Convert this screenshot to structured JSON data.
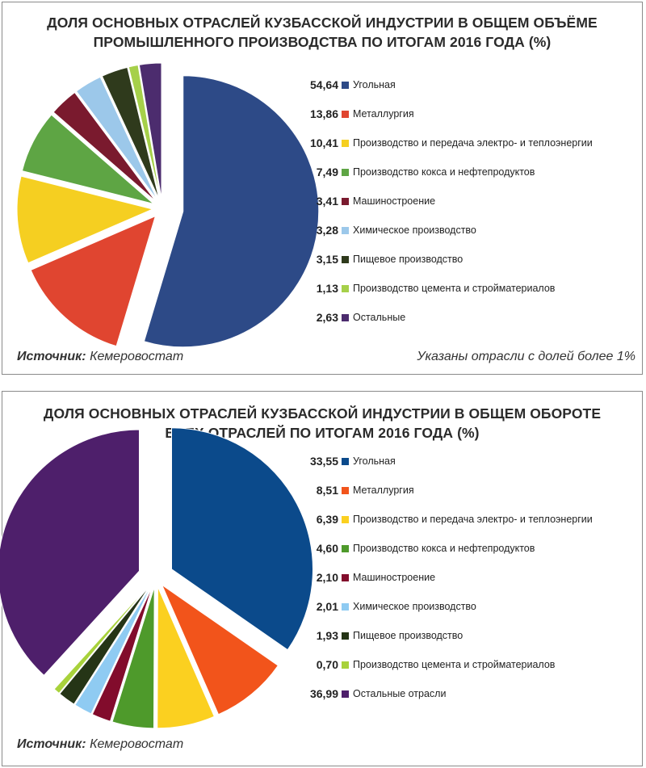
{
  "charts": [
    {
      "title_lines": [
        "ДОЛЯ ОСНОВНЫХ ОТРАСЛЕЙ КУЗБАССКОЙ ИНДУСТРИИ  В ОБЩЕМ ОБЪЁМЕ",
        "ПРОМЫШЛЕННОГО ПРОИЗВОДСТВА ПО ИТОГАМ 2016 ГОДА (%)"
      ],
      "source_label": "Источник:",
      "source_value": "Кемеровостат",
      "note": "Указаны отрасли с долей более 1%"
    },
    {
      "title_lines": [
        "ДОЛЯ ОСНОВНЫХ ОТРАСЛЕЙ КУЗБАССКОЙ ИНДУСТРИИ  В ОБЩЕМ ОБОРОТЕ",
        "ВСЕХ ОТРАСЛЕЙ ПО ИТОГАМ 2016 ГОДА (%)"
      ],
      "source_label": "Источник:",
      "source_value": "Кемеровостат"
    }
  ],
  "chart_data": [
    {
      "type": "pie",
      "title": "ДОЛЯ ОСНОВНЫХ ОТРАСЛЕЙ КУЗБАССКОЙ ИНДУСТРИИ  В ОБЩЕМ ОБЪЁМЕ ПРОМЫШЛЕННОГО ПРОИЗВОДСТВА ПО ИТОГАМ 2016 ГОДА (%)",
      "legend_position": "right",
      "slices": [
        {
          "value": 54.64,
          "value_label": "54,64",
          "label": "Угольная",
          "color": "#2d4a87"
        },
        {
          "value": 13.86,
          "value_label": "13,86",
          "label": "Металлургия",
          "color": "#e04530"
        },
        {
          "value": 10.41,
          "value_label": "10,41",
          "label": "Производство и передача электро- и теплоэнергии",
          "color": "#f5cf21"
        },
        {
          "value": 7.49,
          "value_label": "7,49",
          "label": "Производство кокса и нефтепродуктов",
          "color": "#5ea544"
        },
        {
          "value": 3.41,
          "value_label": "3,41",
          "label": "Машиностроение",
          "color": "#7a1a2e"
        },
        {
          "value": 3.28,
          "value_label": "3,28",
          "label": "Химическое производство",
          "color": "#9cc8ea"
        },
        {
          "value": 3.15,
          "value_label": "3,15",
          "label": "Пищевое производство",
          "color": "#2f3a1c"
        },
        {
          "value": 1.13,
          "value_label": "1,13",
          "label": "Производство цемента и стройматериалов",
          "color": "#a6d04a"
        },
        {
          "value": 2.63,
          "value_label": "2,63",
          "label": "Остальные",
          "color": "#4c2c6e"
        }
      ]
    },
    {
      "type": "pie",
      "title": "ДОЛЯ ОСНОВНЫХ ОТРАСЛЕЙ КУЗБАССКОЙ ИНДУСТРИИ  В ОБЩЕМ ОБОРОТЕ ВСЕХ ОТРАСЛЕЙ ПО ИТОГАМ 2016 ГОДА (%)",
      "legend_position": "right",
      "slices": [
        {
          "value": 33.55,
          "value_label": "33,55",
          "label": "Угольная",
          "color": "#0b4a8b"
        },
        {
          "value": 8.51,
          "value_label": "8,51",
          "label": "Металлургия",
          "color": "#f2541b"
        },
        {
          "value": 6.39,
          "value_label": "6,39",
          "label": "Производство и передача электро- и теплоэнергии",
          "color": "#fbd020"
        },
        {
          "value": 4.6,
          "value_label": "4,60",
          "label": "Производство кокса и нефтепродуктов",
          "color": "#4e9a2b"
        },
        {
          "value": 2.1,
          "value_label": "2,10",
          "label": "Машиностроение",
          "color": "#820c2c"
        },
        {
          "value": 2.01,
          "value_label": "2,01",
          "label": "Химическое производство",
          "color": "#8fcbf2"
        },
        {
          "value": 1.93,
          "value_label": "1,93",
          "label": "Пищевое производство",
          "color": "#253516"
        },
        {
          "value": 0.7,
          "value_label": "0,70",
          "label": "Производство цемента и стройматериалов",
          "color": "#a8d23b"
        },
        {
          "value": 36.99,
          "value_label": "36,99",
          "label": "Остальные отрасли",
          "color": "#4e1f6b"
        }
      ]
    }
  ]
}
